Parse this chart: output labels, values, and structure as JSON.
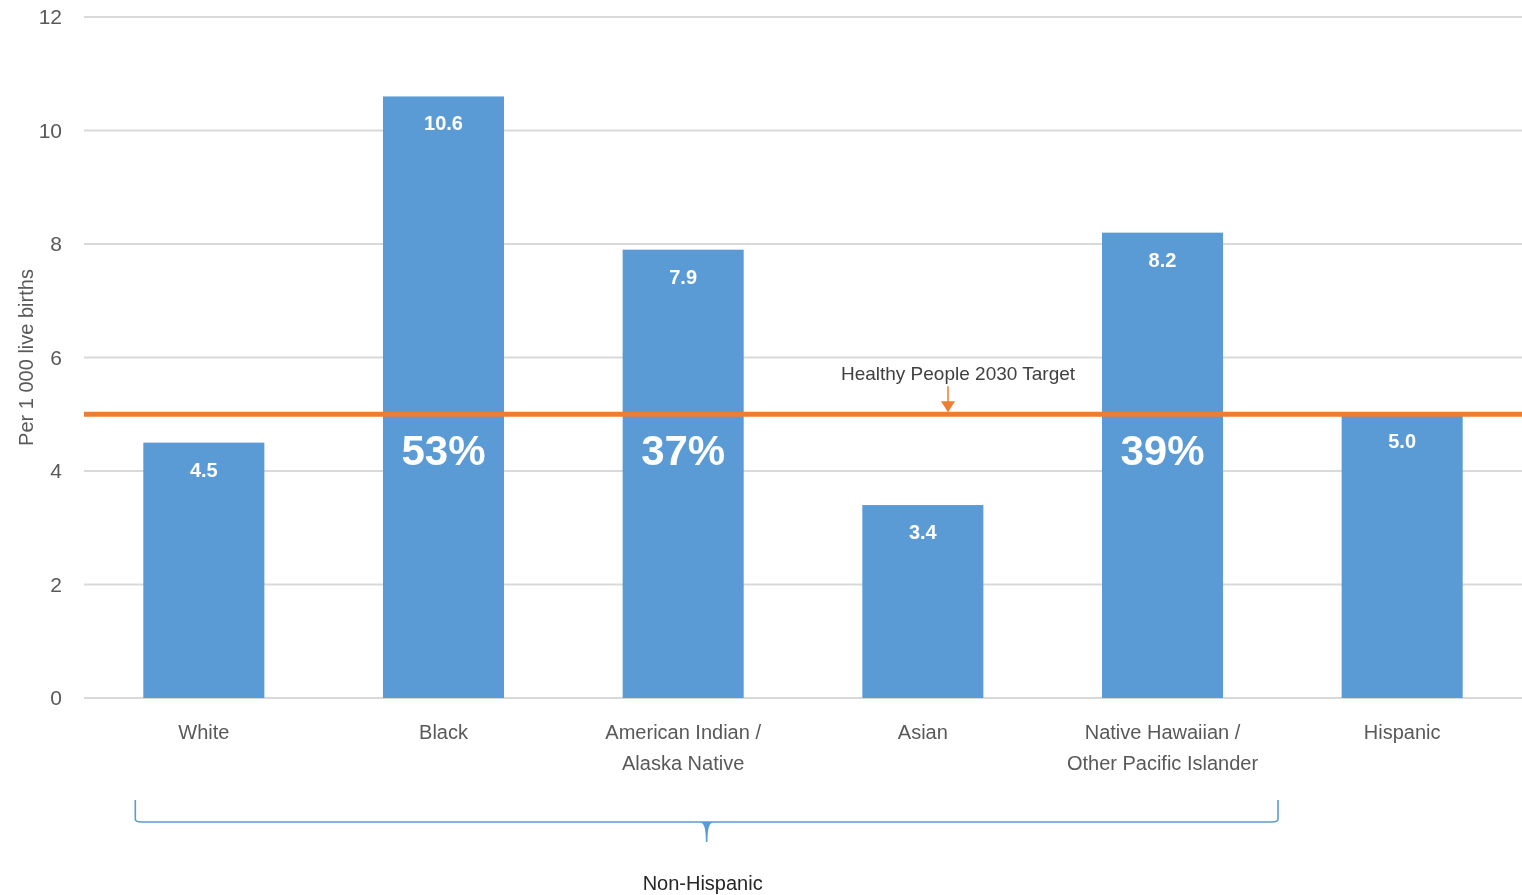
{
  "chart_data": {
    "type": "bar",
    "ylabel": "Per 1 000 live births",
    "categories": [
      "White",
      "Black",
      "American Indian / Alaska Native",
      "Asian",
      "Native Hawaiian / Other Pacific Islander",
      "Hispanic"
    ],
    "values": [
      4.5,
      10.6,
      7.9,
      3.4,
      8.2,
      5.0
    ],
    "value_labels": [
      "4.5",
      "10.6",
      "7.9",
      "3.4",
      "8.2",
      "5.0"
    ],
    "color": "#5b9bd5",
    "ylim": [
      0,
      12
    ],
    "yticks": [
      0,
      2,
      4,
      6,
      8,
      10,
      12
    ],
    "grid": "y",
    "ref_lines": [
      {
        "axis": "y",
        "value": 5,
        "label": "Healthy People 2030 Target",
        "color": "#ed7d31"
      }
    ],
    "annotations": [
      "53%",
      "37%",
      "39%",
      "Non-Hispanic"
    ]
  }
}
